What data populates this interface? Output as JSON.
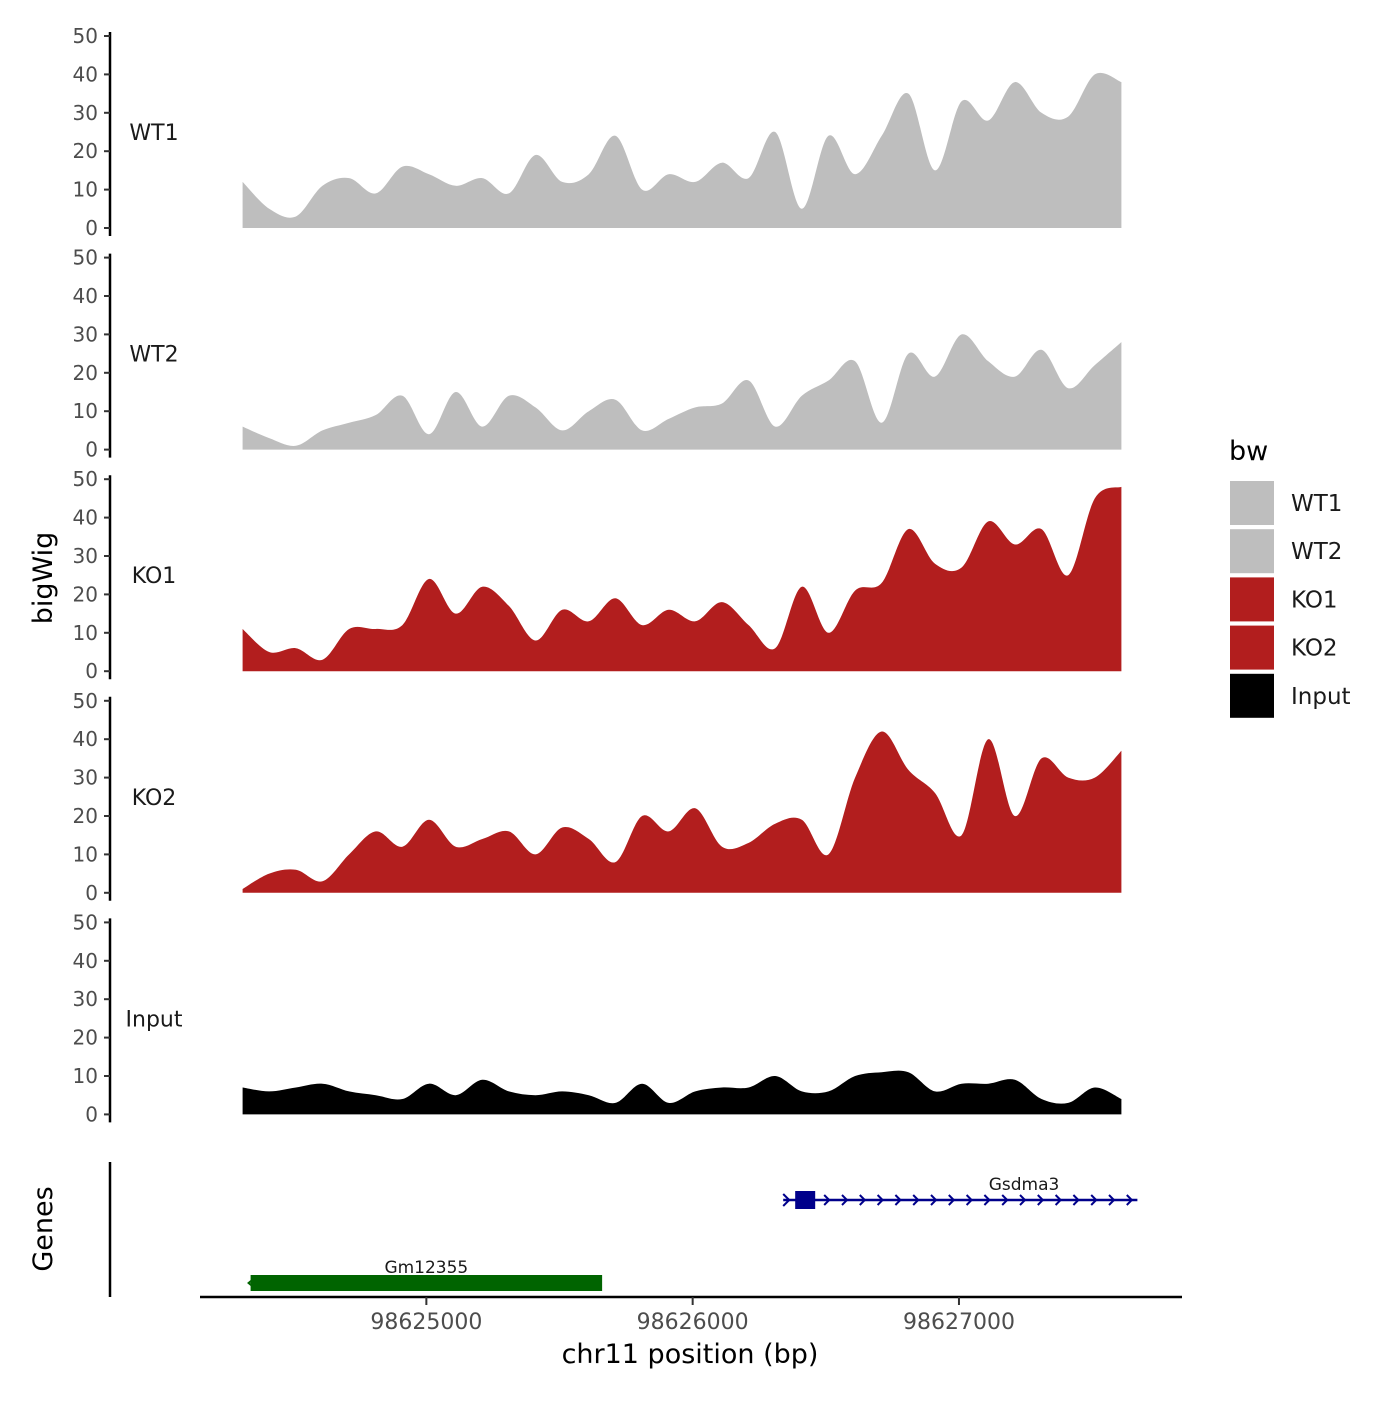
{
  "chart_data": {
    "type": "area",
    "title": "",
    "ylabel": "bigWig",
    "xlabel": "chr11 position (bp)",
    "xlim": [
      98624150,
      98627830
    ],
    "ylim": [
      0,
      50
    ],
    "y_ticks": [
      "0",
      "10",
      "20",
      "30",
      "40",
      "50"
    ],
    "x_ticks": [
      {
        "value": 98625000,
        "label": "98625000"
      },
      {
        "value": 98626000,
        "label": "98626000"
      },
      {
        "value": 98627000,
        "label": "98627000"
      }
    ],
    "x": [
      98624310,
      98624410,
      98624510,
      98624610,
      98624710,
      98624810,
      98624910,
      98625010,
      98625110,
      98625210,
      98625310,
      98625410,
      98625510,
      98625610,
      98625710,
      98625810,
      98625910,
      98626010,
      98626110,
      98626210,
      98626310,
      98626410,
      98626510,
      98626610,
      98626710,
      98626810,
      98626910,
      98627010,
      98627110,
      98627210,
      98627310,
      98627410,
      98627510,
      98627610
    ],
    "series": [
      {
        "name": "WT1",
        "color": "#bebebe",
        "values": [
          12,
          5,
          3,
          11,
          13,
          9,
          16,
          14,
          11,
          13,
          9,
          19,
          12,
          14,
          24,
          10,
          14,
          12,
          17,
          13,
          25,
          5,
          24,
          14,
          24,
          35,
          15,
          33,
          28,
          38,
          30,
          29,
          40,
          38
        ]
      },
      {
        "name": "WT2",
        "color": "#bebebe",
        "values": [
          6,
          3,
          1,
          5,
          7,
          9,
          14,
          4,
          15,
          6,
          14,
          11,
          5,
          10,
          13,
          5,
          8,
          11,
          12,
          18,
          6,
          14,
          18,
          23,
          7,
          25,
          19,
          30,
          23,
          19,
          26,
          16,
          22,
          28
        ]
      },
      {
        "name": "KO1",
        "color": "#b21e1e",
        "values": [
          11,
          5,
          6,
          3,
          11,
          11,
          12,
          24,
          15,
          22,
          17,
          8,
          16,
          13,
          19,
          12,
          16,
          13,
          18,
          12,
          6,
          22,
          10,
          21,
          23,
          37,
          28,
          27,
          39,
          33,
          37,
          25,
          45,
          48
        ]
      },
      {
        "name": "KO2",
        "color": "#b21e1e",
        "values": [
          1,
          5,
          6,
          3,
          10,
          16,
          12,
          19,
          12,
          14,
          16,
          10,
          17,
          14,
          8,
          20,
          16,
          22,
          12,
          13,
          18,
          19,
          10,
          30,
          42,
          32,
          26,
          15,
          40,
          20,
          35,
          30,
          30,
          37
        ]
      },
      {
        "name": "Input",
        "color": "#000000",
        "values": [
          7,
          6,
          7,
          8,
          6,
          5,
          4,
          8,
          5,
          9,
          6,
          5,
          6,
          5,
          3,
          8,
          3,
          6,
          7,
          7,
          10,
          6,
          6,
          10,
          11,
          11,
          6,
          8,
          8,
          9,
          4,
          3,
          7,
          4
        ]
      }
    ],
    "legend": {
      "title": "bw",
      "position": "right",
      "entries": [
        {
          "label": "WT1",
          "color": "#bebebe"
        },
        {
          "label": "WT2",
          "color": "#bebebe"
        },
        {
          "label": "KO1",
          "color": "#b21e1e"
        },
        {
          "label": "KO2",
          "color": "#b21e1e"
        },
        {
          "label": "Input",
          "color": "#000000"
        }
      ]
    },
    "genes_track": {
      "label": "Genes",
      "genes": [
        {
          "name": "Gm12355",
          "start": 98624340,
          "end": 98625660,
          "strand": "-",
          "color": "#006400"
        },
        {
          "name": "Gsdma3",
          "start": 98626340,
          "end": 98627670,
          "strand": "+",
          "color": "#00008b"
        }
      ]
    },
    "grid": false
  }
}
